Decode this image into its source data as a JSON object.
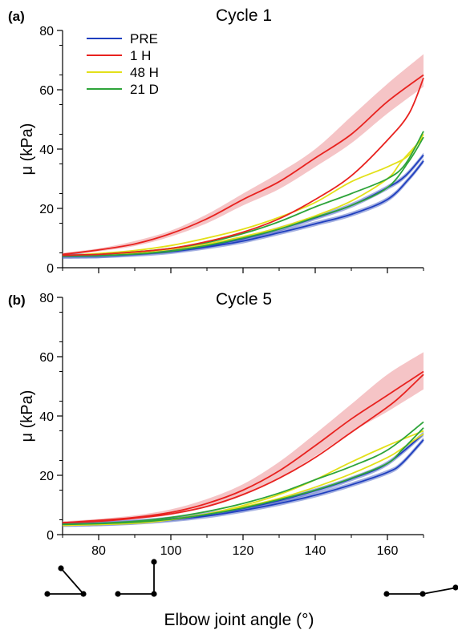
{
  "figure": {
    "xlabel": "Elbow joint angle (°)"
  },
  "colors": {
    "PRE": "#1f3fbf",
    "1 H": "#e8221f",
    "48 H": "#e3e01a",
    "21 D": "#2ea43a",
    "band_1H": "#f3b5b8",
    "band_PRE": "#5a6fc8",
    "axis": "#000000",
    "joint": "#000000"
  },
  "chart_data": [
    {
      "type": "line",
      "panel": "(a)",
      "title": "Cycle 1",
      "xlabel": "",
      "ylabel": "μ (kPa)",
      "xlim": [
        70,
        170
      ],
      "ylim": [
        0,
        80
      ],
      "xticks": [
        80,
        100,
        120,
        140,
        160
      ],
      "yticks": [
        0,
        20,
        40,
        60,
        80
      ],
      "show_xtick_labels": false,
      "grid": false,
      "legend": {
        "position": "top-left",
        "entries": [
          "PRE",
          "1 H",
          "48 H",
          "21 D"
        ]
      },
      "series": [
        {
          "name": "PRE",
          "loading": [
            [
              70,
              4
            ],
            [
              80,
              4
            ],
            [
              90,
              4.8
            ],
            [
              100,
              5.8
            ],
            [
              110,
              7.4
            ],
            [
              120,
              9.8
            ],
            [
              130,
              13
            ],
            [
              140,
              16.8
            ],
            [
              150,
              21
            ],
            [
              160,
              27
            ],
            [
              165,
              31
            ],
            [
              170,
              38
            ]
          ],
          "unloading": [
            [
              170,
              36
            ],
            [
              166,
              30
            ],
            [
              160,
              23
            ],
            [
              150,
              18
            ],
            [
              140,
              14.8
            ],
            [
              130,
              11.8
            ],
            [
              120,
              9
            ],
            [
              110,
              7
            ],
            [
              100,
              5.4
            ],
            [
              90,
              4.5
            ],
            [
              80,
              4
            ],
            [
              70,
              3.8
            ]
          ],
          "band": 1.6
        },
        {
          "name": "1 H",
          "loading": [
            [
              70,
              4.5
            ],
            [
              80,
              6
            ],
            [
              90,
              8
            ],
            [
              100,
              11.5
            ],
            [
              110,
              16.5
            ],
            [
              120,
              23
            ],
            [
              130,
              29
            ],
            [
              140,
              37
            ],
            [
              150,
              45
            ],
            [
              160,
              56
            ],
            [
              170,
              65
            ]
          ],
          "unloading": [
            [
              170,
              64
            ],
            [
              166,
              52
            ],
            [
              160,
              43
            ],
            [
              150,
              31
            ],
            [
              140,
              23
            ],
            [
              130,
              16.5
            ],
            [
              120,
              12
            ],
            [
              110,
              8.8
            ],
            [
              100,
              6.5
            ],
            [
              90,
              5.3
            ],
            [
              80,
              4.5
            ],
            [
              70,
              4.2
            ]
          ],
          "band_upper": [
            [
              70,
              5
            ],
            [
              80,
              6.5
            ],
            [
              90,
              9
            ],
            [
              100,
              12.5
            ],
            [
              110,
              18
            ],
            [
              120,
              25
            ],
            [
              130,
              32
            ],
            [
              140,
              40
            ],
            [
              150,
              51
            ],
            [
              160,
              62
            ],
            [
              170,
              72
            ]
          ],
          "band_lower": [
            [
              70,
              4
            ],
            [
              80,
              5.5
            ],
            [
              90,
              7.3
            ],
            [
              100,
              10.5
            ],
            [
              110,
              15
            ],
            [
              120,
              21
            ],
            [
              130,
              26.5
            ],
            [
              140,
              34
            ],
            [
              150,
              42
            ],
            [
              160,
              52
            ],
            [
              170,
              61
            ]
          ]
        },
        {
          "name": "48 H",
          "loading": [
            [
              70,
              4
            ],
            [
              80,
              4.8
            ],
            [
              90,
              5.8
            ],
            [
              100,
              7.5
            ],
            [
              110,
              10
            ],
            [
              120,
              13
            ],
            [
              130,
              17
            ],
            [
              140,
              22
            ],
            [
              150,
              29
            ],
            [
              160,
              34
            ],
            [
              166,
              38
            ],
            [
              170,
              45
            ]
          ],
          "unloading": [
            [
              170,
              44
            ],
            [
              164,
              36
            ],
            [
              160,
              30
            ],
            [
              150,
              22.5
            ],
            [
              140,
              17.5
            ],
            [
              130,
              13.5
            ],
            [
              120,
              10.5
            ],
            [
              110,
              8
            ],
            [
              100,
              6.2
            ],
            [
              90,
              5
            ],
            [
              80,
              4.3
            ],
            [
              70,
              4
            ]
          ]
        },
        {
          "name": "21 D",
          "loading": [
            [
              70,
              4
            ],
            [
              80,
              4.5
            ],
            [
              90,
              5.3
            ],
            [
              100,
              6.5
            ],
            [
              110,
              8.5
            ],
            [
              120,
              11.5
            ],
            [
              130,
              15.5
            ],
            [
              140,
              20.5
            ],
            [
              150,
              25
            ],
            [
              160,
              30
            ],
            [
              165,
              35
            ],
            [
              170,
              46
            ]
          ],
          "unloading": [
            [
              170,
              44
            ],
            [
              166,
              36
            ],
            [
              160,
              27
            ],
            [
              150,
              21
            ],
            [
              140,
              17
            ],
            [
              130,
              13
            ],
            [
              120,
              10
            ],
            [
              110,
              7.5
            ],
            [
              100,
              5.6
            ],
            [
              90,
              4.6
            ],
            [
              80,
              4.1
            ],
            [
              70,
              3.9
            ]
          ]
        }
      ]
    },
    {
      "type": "line",
      "panel": "(b)",
      "title": "Cycle 5",
      "xlabel": "Elbow joint angle (°)",
      "ylabel": "μ (kPa)",
      "xlim": [
        70,
        170
      ],
      "ylim": [
        0,
        80
      ],
      "xticks": [
        80,
        100,
        120,
        140,
        160
      ],
      "yticks": [
        0,
        20,
        40,
        60,
        80
      ],
      "show_xtick_labels": true,
      "grid": false,
      "series": [
        {
          "name": "PRE",
          "loading": [
            [
              70,
              3.5
            ],
            [
              80,
              3.8
            ],
            [
              90,
              4.3
            ],
            [
              100,
              5.3
            ],
            [
              110,
              6.8
            ],
            [
              120,
              8.8
            ],
            [
              130,
              11.5
            ],
            [
              140,
              14.8
            ],
            [
              150,
              18.8
            ],
            [
              160,
              24
            ],
            [
              170,
              34
            ]
          ],
          "unloading": [
            [
              170,
              32
            ],
            [
              164,
              24
            ],
            [
              160,
              21
            ],
            [
              150,
              16.8
            ],
            [
              140,
              13.3
            ],
            [
              130,
              10.5
            ],
            [
              120,
              8.2
            ],
            [
              110,
              6.3
            ],
            [
              100,
              5
            ],
            [
              90,
              4.1
            ],
            [
              80,
              3.6
            ],
            [
              70,
              3.4
            ]
          ],
          "band": 1.6
        },
        {
          "name": "1 H",
          "loading": [
            [
              70,
              4
            ],
            [
              80,
              4.8
            ],
            [
              90,
              5.8
            ],
            [
              100,
              7.5
            ],
            [
              110,
              10.5
            ],
            [
              120,
              15
            ],
            [
              130,
              21.5
            ],
            [
              140,
              30
            ],
            [
              150,
              39
            ],
            [
              160,
              47
            ],
            [
              170,
              55
            ]
          ],
          "unloading": [
            [
              170,
              54
            ],
            [
              164,
              47
            ],
            [
              160,
              43
            ],
            [
              150,
              34.5
            ],
            [
              140,
              26
            ],
            [
              130,
              19
            ],
            [
              120,
              13.5
            ],
            [
              110,
              9.5
            ],
            [
              100,
              7
            ],
            [
              90,
              5.5
            ],
            [
              80,
              4.5
            ],
            [
              70,
              4
            ]
          ],
          "band_upper": [
            [
              70,
              4.5
            ],
            [
              80,
              5.3
            ],
            [
              90,
              6.5
            ],
            [
              100,
              8.5
            ],
            [
              110,
              12
            ],
            [
              120,
              17
            ],
            [
              130,
              24.5
            ],
            [
              140,
              34
            ],
            [
              150,
              44
            ],
            [
              160,
              54
            ],
            [
              170,
              61.5
            ]
          ],
          "band_lower": [
            [
              70,
              3.6
            ],
            [
              80,
              4.3
            ],
            [
              90,
              5.2
            ],
            [
              100,
              6.6
            ],
            [
              110,
              9.2
            ],
            [
              120,
              13.2
            ],
            [
              130,
              19
            ],
            [
              140,
              26.5
            ],
            [
              150,
              34.5
            ],
            [
              160,
              41.5
            ],
            [
              170,
              49
            ]
          ]
        },
        {
          "name": "48 H",
          "loading": [
            [
              70,
              3.2
            ],
            [
              80,
              3.4
            ],
            [
              90,
              3.8
            ],
            [
              100,
              5
            ],
            [
              110,
              7
            ],
            [
              120,
              9.8
            ],
            [
              130,
              13.5
            ],
            [
              140,
              18.5
            ],
            [
              150,
              24.5
            ],
            [
              160,
              30
            ],
            [
              170,
              35
            ]
          ],
          "unloading": [
            [
              170,
              34
            ],
            [
              164,
              29
            ],
            [
              160,
              26
            ],
            [
              150,
              20.5
            ],
            [
              140,
              16
            ],
            [
              130,
              12.2
            ],
            [
              120,
              9.3
            ],
            [
              110,
              7
            ],
            [
              100,
              5.2
            ],
            [
              90,
              4.1
            ],
            [
              80,
              3.4
            ],
            [
              70,
              3.1
            ]
          ]
        },
        {
          "name": "21 D",
          "loading": [
            [
              70,
              3.5
            ],
            [
              80,
              3.8
            ],
            [
              90,
              4.5
            ],
            [
              100,
              5.8
            ],
            [
              110,
              7.8
            ],
            [
              120,
              10.5
            ],
            [
              130,
              14
            ],
            [
              140,
              18.5
            ],
            [
              150,
              23
            ],
            [
              160,
              28.5
            ],
            [
              170,
              38
            ]
          ],
          "unloading": [
            [
              170,
              36
            ],
            [
              164,
              28.5
            ],
            [
              160,
              24
            ],
            [
              150,
              19
            ],
            [
              140,
              15
            ],
            [
              130,
              11.8
            ],
            [
              120,
              9
            ],
            [
              110,
              6.8
            ],
            [
              100,
              5.2
            ],
            [
              90,
              4.2
            ],
            [
              80,
              3.7
            ],
            [
              70,
              3.4
            ]
          ]
        }
      ]
    }
  ],
  "joint_icons": [
    {
      "name": "flexed-arm-icon",
      "angle_deg": 70
    },
    {
      "name": "right-angle-arm-icon",
      "angle_deg": 90
    },
    {
      "name": "extended-arm-icon",
      "angle_deg": 170
    }
  ]
}
